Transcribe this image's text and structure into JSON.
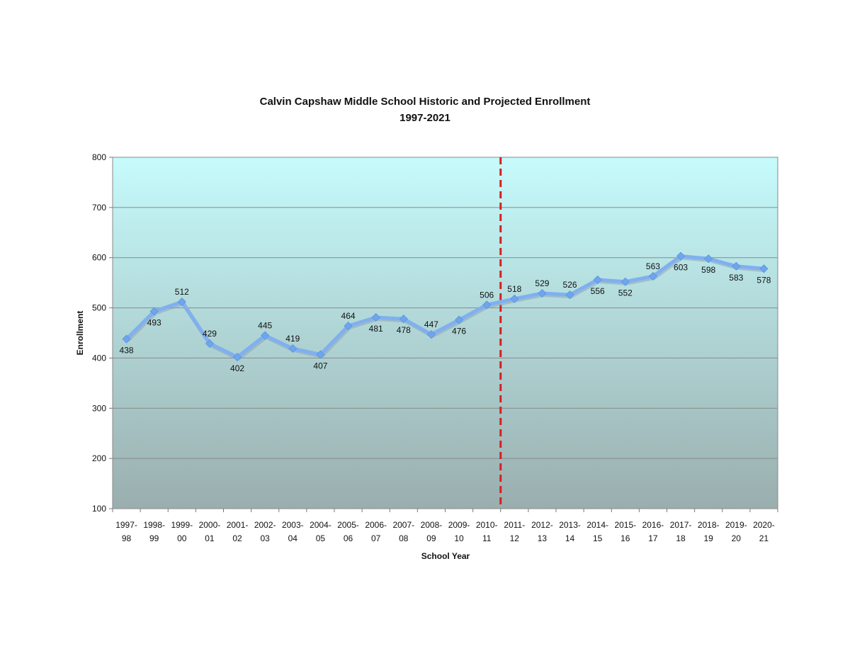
{
  "chart_data": {
    "type": "line",
    "title": "Calvin Capshaw Middle School Historic and Projected Enrollment",
    "subtitle": "1997-2021",
    "xlabel": "School Year",
    "ylabel": "Enrollment",
    "ylim": [
      100,
      800
    ],
    "yticks": [
      100,
      200,
      300,
      400,
      500,
      600,
      700,
      800
    ],
    "grid": true,
    "legend": "none",
    "categories": [
      [
        "1997-",
        "98"
      ],
      [
        "1998-",
        "99"
      ],
      [
        "1999-",
        "00"
      ],
      [
        "2000-",
        "01"
      ],
      [
        "2001-",
        "02"
      ],
      [
        "2002-",
        "03"
      ],
      [
        "2003-",
        "04"
      ],
      [
        "2004-",
        "05"
      ],
      [
        "2005-",
        "06"
      ],
      [
        "2006-",
        "07"
      ],
      [
        "2007-",
        "08"
      ],
      [
        "2008-",
        "09"
      ],
      [
        "2009-",
        "10"
      ],
      [
        "2010-",
        "11"
      ],
      [
        "2011-",
        "12"
      ],
      [
        "2012-",
        "13"
      ],
      [
        "2013-",
        "14"
      ],
      [
        "2014-",
        "15"
      ],
      [
        "2015-",
        "16"
      ],
      [
        "2016-",
        "17"
      ],
      [
        "2017-",
        "18"
      ],
      [
        "2018-",
        "19"
      ],
      [
        "2019-",
        "20"
      ],
      [
        "2020-",
        "21"
      ]
    ],
    "series": [
      {
        "values": [
          438,
          493,
          512,
          429,
          402,
          445,
          419,
          407,
          464,
          481,
          478,
          447,
          476,
          506,
          518,
          529,
          526,
          556,
          552,
          563,
          603,
          598,
          583,
          578
        ],
        "label_positions": [
          "below",
          "below",
          "above",
          "above",
          "below",
          "above",
          "above",
          "below",
          "above",
          "below",
          "below",
          "above",
          "below",
          "above",
          "above",
          "above",
          "above",
          "below",
          "below",
          "above",
          "below",
          "below",
          "below",
          "below"
        ]
      }
    ],
    "divider_after_category_index": 13,
    "colors": {
      "line": "#7fb0f0",
      "marker": "#6ea6ee",
      "divider": "#d42020",
      "plot_top": "#c6fbfc",
      "plot_bottom": "#9aaeae"
    }
  }
}
